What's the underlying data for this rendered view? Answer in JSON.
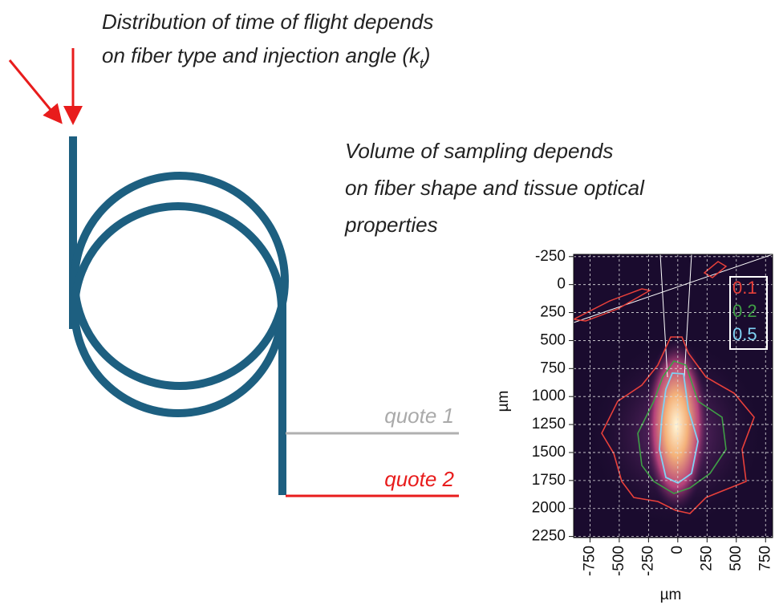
{
  "texts": {
    "heading1": {
      "line1": "Distribution of time of flight  depends",
      "line2": "on fiber type and injection angle (k",
      "subscript": "t",
      "line2_end": ")"
    },
    "heading2": {
      "line1": "Volume of sampling depends",
      "line2": "on fiber shape and  tissue optical",
      "line3": "properties"
    },
    "quote1": "quote 1",
    "quote2": "quote 2"
  },
  "chart_data": {
    "type": "heatmap",
    "xlabel": "µm",
    "ylabel": "µm",
    "xlim": [
      -890,
      810
    ],
    "ylim": [
      -270,
      2260
    ],
    "xticks": [
      -750,
      -500,
      -250,
      0,
      250,
      500,
      750
    ],
    "yticks": [
      -250,
      0,
      250,
      500,
      750,
      1000,
      1250,
      1500,
      1750,
      2000,
      2250
    ],
    "y_inverted": true,
    "grid": true,
    "series": [
      {
        "name": "0.1",
        "color": "#e8403a"
      },
      {
        "name": "0.2",
        "color": "#3f9e46"
      },
      {
        "name": "0.5",
        "color": "#7fd3f5"
      }
    ]
  }
}
